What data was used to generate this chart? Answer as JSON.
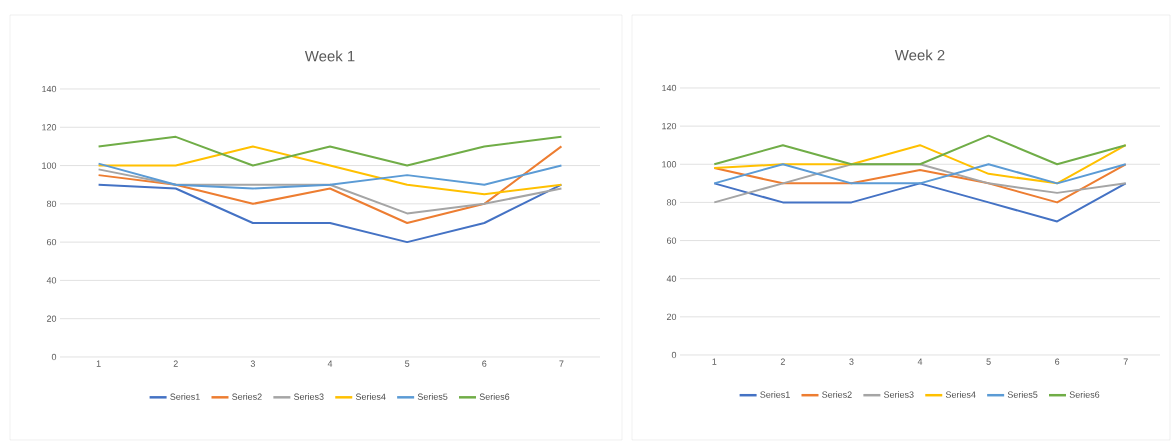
{
  "chart_data": [
    {
      "type": "line",
      "title": "Week 1",
      "categories": [
        "1",
        "2",
        "3",
        "4",
        "5",
        "6",
        "7"
      ],
      "ylim": [
        0,
        140
      ],
      "yticks": [
        0,
        20,
        40,
        60,
        80,
        100,
        120,
        140
      ],
      "grid": "y",
      "legend": "bottom",
      "marker": "none",
      "line_style": "solid",
      "series": [
        {
          "name": "Series1",
          "color": "#4472c4",
          "values": [
            90,
            88,
            70,
            70,
            60,
            70,
            90
          ]
        },
        {
          "name": "Series2",
          "color": "#ed7d31",
          "values": [
            95,
            90,
            80,
            88,
            70,
            80,
            110
          ]
        },
        {
          "name": "Series3",
          "color": "#a5a5a5",
          "values": [
            98,
            90,
            90,
            90,
            75,
            80,
            88
          ]
        },
        {
          "name": "Series4",
          "color": "#ffc000",
          "values": [
            100,
            100,
            110,
            100,
            90,
            85,
            90
          ]
        },
        {
          "name": "Series5",
          "color": "#5b9bd5",
          "values": [
            101,
            90,
            88,
            90,
            95,
            90,
            100
          ]
        },
        {
          "name": "Series6",
          "color": "#70ad47",
          "values": [
            110,
            115,
            100,
            110,
            100,
            110,
            115
          ]
        }
      ]
    },
    {
      "type": "line",
      "title": "Week 2",
      "categories": [
        "1",
        "2",
        "3",
        "4",
        "5",
        "6",
        "7"
      ],
      "ylim": [
        0,
        140
      ],
      "yticks": [
        0,
        20,
        40,
        60,
        80,
        100,
        120,
        140
      ],
      "grid": "y",
      "legend": "bottom",
      "marker": "none",
      "line_style": "solid",
      "series": [
        {
          "name": "Series1",
          "color": "#4472c4",
          "values": [
            90,
            80,
            80,
            90,
            80,
            70,
            90
          ]
        },
        {
          "name": "Series2",
          "color": "#ed7d31",
          "values": [
            98,
            90,
            90,
            97,
            90,
            80,
            100
          ]
        },
        {
          "name": "Series3",
          "color": "#a5a5a5",
          "values": [
            80,
            90,
            100,
            100,
            90,
            85,
            90
          ]
        },
        {
          "name": "Series4",
          "color": "#ffc000",
          "values": [
            98,
            100,
            100,
            110,
            95,
            90,
            110
          ]
        },
        {
          "name": "Series5",
          "color": "#5b9bd5",
          "values": [
            90,
            100,
            90,
            90,
            100,
            90,
            100
          ]
        },
        {
          "name": "Series6",
          "color": "#70ad47",
          "values": [
            100,
            110,
            100,
            100,
            115,
            100,
            110
          ]
        }
      ]
    }
  ]
}
